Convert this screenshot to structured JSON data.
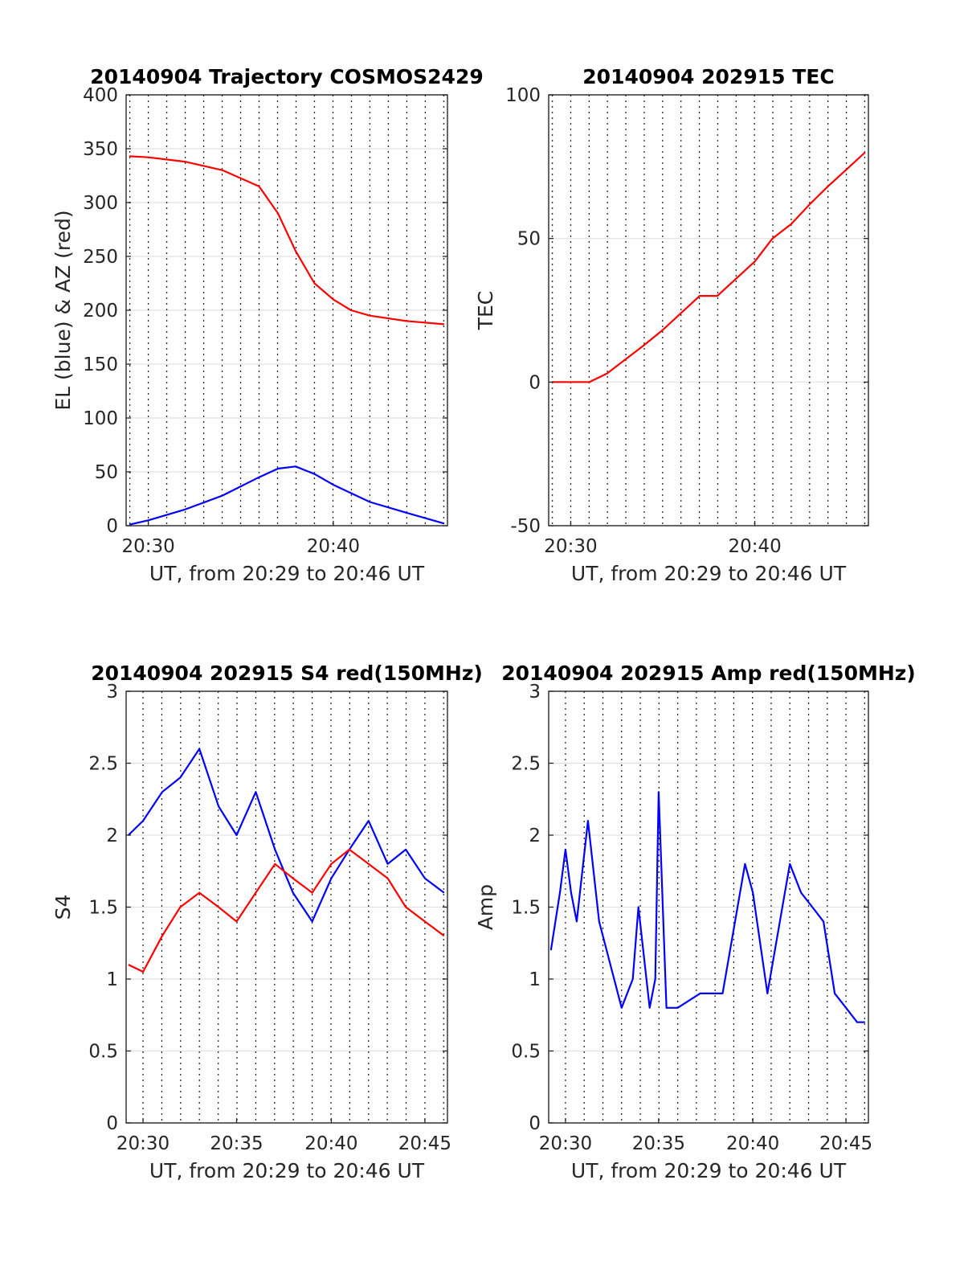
{
  "chart_data": [
    {
      "id": "trajectory",
      "type": "line",
      "title": "20140904 Trajectory COSMOS2429",
      "xlabel": "UT, from 20:29 to 20:46 UT",
      "ylabel": "EL (blue) & AZ (red)",
      "xlim": [
        20.48,
        20.77
      ],
      "ylim": [
        0,
        400
      ],
      "xticks": [
        {
          "v": 20.5,
          "label": "20:30"
        },
        {
          "v": 20.667,
          "label": "20:40"
        }
      ],
      "yticks": [
        0,
        50,
        100,
        150,
        200,
        250,
        300,
        350,
        400
      ],
      "grid": true,
      "series": [
        {
          "color": "#ff0000",
          "x": [
            20.483,
            20.5,
            20.533,
            20.567,
            20.6,
            20.617,
            20.633,
            20.65,
            20.667,
            20.683,
            20.7,
            20.733,
            20.767
          ],
          "y": [
            343,
            342,
            338,
            330,
            315,
            290,
            255,
            225,
            210,
            200,
            195,
            190,
            187
          ]
        },
        {
          "color": "#0000ff",
          "x": [
            20.483,
            20.5,
            20.533,
            20.567,
            20.6,
            20.617,
            20.633,
            20.65,
            20.667,
            20.7,
            20.733,
            20.767
          ],
          "y": [
            1,
            5,
            15,
            28,
            45,
            53,
            55,
            48,
            38,
            22,
            12,
            2
          ]
        }
      ]
    },
    {
      "id": "tec",
      "type": "line",
      "title": "20140904 202915 TEC",
      "xlabel": "UT, from 20:29 to 20:46 UT",
      "ylabel": "TEC",
      "xlim": [
        20.48,
        20.77
      ],
      "ylim": [
        -50,
        100
      ],
      "xticks": [
        {
          "v": 20.5,
          "label": "20:30"
        },
        {
          "v": 20.667,
          "label": "20:40"
        }
      ],
      "yticks": [
        -50,
        0,
        50,
        100
      ],
      "grid": true,
      "series": [
        {
          "color": "#ff0000",
          "x": [
            20.483,
            20.5,
            20.517,
            20.533,
            20.55,
            20.567,
            20.583,
            20.6,
            20.617,
            20.633,
            20.65,
            20.667,
            20.683,
            20.7,
            20.717,
            20.733,
            20.75,
            20.767
          ],
          "y": [
            0,
            0,
            0,
            3,
            8,
            13,
            18,
            24,
            30,
            30,
            36,
            42,
            50,
            55,
            62,
            68,
            74,
            80
          ]
        }
      ]
    },
    {
      "id": "s4",
      "type": "line",
      "title": "20140904 202915 S4 red(150MHz)",
      "xlabel": "UT, from 20:29 to 20:46 UT",
      "ylabel": "S4",
      "xlim": [
        20.485,
        20.77
      ],
      "ylim": [
        0,
        3
      ],
      "xticks": [
        {
          "v": 20.5,
          "label": "20:30"
        },
        {
          "v": 20.583,
          "label": "20:35"
        },
        {
          "v": 20.667,
          "label": "20:40"
        },
        {
          "v": 20.75,
          "label": "20:45"
        }
      ],
      "yticks": [
        0,
        0.5,
        1,
        1.5,
        2,
        2.5,
        3
      ],
      "grid": true,
      "series": [
        {
          "color": "#0000ff",
          "x": [
            20.487,
            20.5,
            20.517,
            20.533,
            20.55,
            20.567,
            20.583,
            20.6,
            20.617,
            20.633,
            20.65,
            20.667,
            20.683,
            20.7,
            20.717,
            20.733,
            20.75,
            20.767
          ],
          "y": [
            2.0,
            2.1,
            2.3,
            2.4,
            2.6,
            2.2,
            2.0,
            2.3,
            1.9,
            1.6,
            1.4,
            1.7,
            1.9,
            2.1,
            1.8,
            1.9,
            1.7,
            1.6
          ]
        },
        {
          "color": "#ff0000",
          "x": [
            20.487,
            20.5,
            20.517,
            20.533,
            20.55,
            20.567,
            20.583,
            20.6,
            20.617,
            20.633,
            20.65,
            20.667,
            20.683,
            20.7,
            20.717,
            20.733,
            20.75,
            20.767
          ],
          "y": [
            1.1,
            1.05,
            1.3,
            1.5,
            1.6,
            1.5,
            1.4,
            1.6,
            1.8,
            1.7,
            1.6,
            1.8,
            1.9,
            1.8,
            1.7,
            1.5,
            1.4,
            1.3
          ]
        }
      ]
    },
    {
      "id": "amp",
      "type": "line",
      "title": "20140904 202915 Amp red(150MHz)",
      "xlabel": "UT, from 20:29 to 20:46 UT",
      "ylabel": "Amp",
      "xlim": [
        20.485,
        20.77
      ],
      "ylim": [
        0,
        3
      ],
      "xticks": [
        {
          "v": 20.5,
          "label": "20:30"
        },
        {
          "v": 20.583,
          "label": "20:35"
        },
        {
          "v": 20.667,
          "label": "20:40"
        },
        {
          "v": 20.75,
          "label": "20:45"
        }
      ],
      "yticks": [
        0,
        0.5,
        1,
        1.5,
        2,
        2.5,
        3
      ],
      "grid": true,
      "series": [
        {
          "color": "#0000ff",
          "x": [
            20.487,
            20.495,
            20.5,
            20.505,
            20.51,
            20.52,
            20.53,
            20.54,
            20.55,
            20.56,
            20.565,
            20.575,
            20.58,
            20.583,
            20.59,
            20.6,
            20.62,
            20.64,
            20.66,
            20.667,
            20.68,
            20.7,
            20.71,
            20.72,
            20.73,
            20.74,
            20.75,
            20.76,
            20.767
          ],
          "y": [
            1.2,
            1.6,
            1.9,
            1.6,
            1.4,
            2.1,
            1.4,
            1.1,
            0.8,
            1.0,
            1.5,
            0.8,
            1.0,
            2.3,
            0.8,
            0.8,
            0.9,
            0.9,
            1.8,
            1.6,
            0.9,
            1.8,
            1.6,
            1.5,
            1.4,
            0.9,
            0.8,
            0.7,
            0.7
          ]
        }
      ]
    }
  ]
}
